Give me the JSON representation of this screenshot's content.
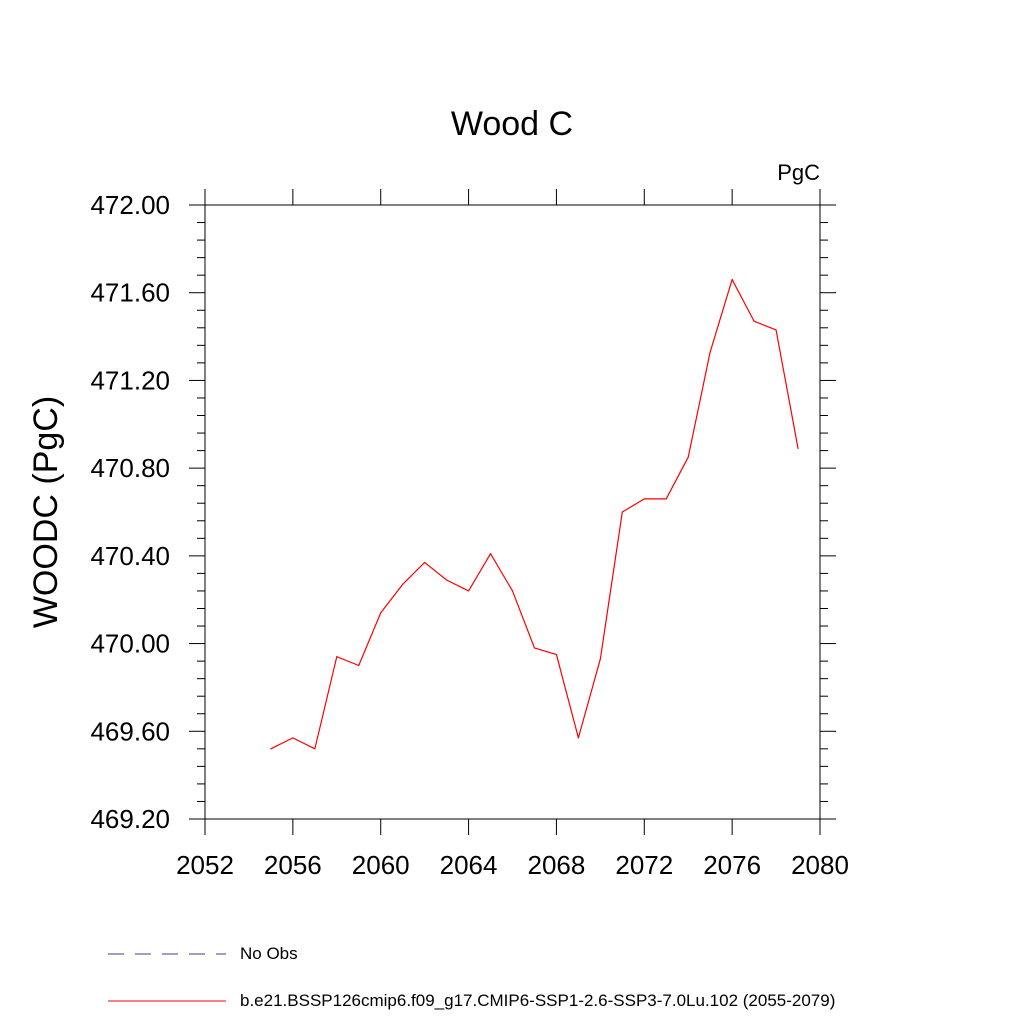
{
  "chart_data": {
    "type": "line",
    "title": "Wood C",
    "units": "PgC",
    "ylabel": "WOODC  (PgC)",
    "xlabel": "",
    "xlim": [
      2052,
      2080
    ],
    "ylim": [
      469.2,
      472.0
    ],
    "x_ticks": [
      2052,
      2056,
      2060,
      2064,
      2068,
      2072,
      2076,
      2080
    ],
    "y_ticks": [
      "469.20",
      "469.60",
      "470.00",
      "470.40",
      "470.80",
      "471.20",
      "471.60",
      "472.00"
    ],
    "y_tick_values": [
      469.2,
      469.6,
      470.0,
      470.4,
      470.8,
      471.2,
      471.6,
      472.0
    ],
    "grid": false,
    "legend_position": "bottom",
    "series": [
      {
        "name": "b.e21.BSSP126cmip6.f09_g17.CMIP6-SSP1-2.6-SSP3-7.0Lu.102 (2055-2079)",
        "color": "#ff0000",
        "x": [
          2055,
          2056,
          2057,
          2058,
          2059,
          2060,
          2061,
          2062,
          2063,
          2064,
          2065,
          2066,
          2067,
          2068,
          2069,
          2070,
          2071,
          2072,
          2073,
          2074,
          2075,
          2076,
          2077,
          2078,
          2079
        ],
        "values": [
          469.52,
          469.57,
          469.52,
          469.94,
          469.9,
          470.14,
          470.27,
          470.37,
          470.29,
          470.24,
          470.41,
          470.24,
          469.98,
          469.95,
          469.57,
          469.93,
          470.6,
          470.66,
          470.66,
          470.85,
          471.33,
          471.66,
          471.47,
          471.43,
          470.89
        ]
      }
    ],
    "legend": [
      {
        "label": "No Obs",
        "color": "#4b3a8c",
        "style": "dashed"
      },
      {
        "label": "b.e21.BSSP126cmip6.f09_g17.CMIP6-SSP1-2.6-SSP3-7.0Lu.102 (2055-2079)",
        "color": "#ff0000",
        "style": "solid"
      }
    ]
  }
}
